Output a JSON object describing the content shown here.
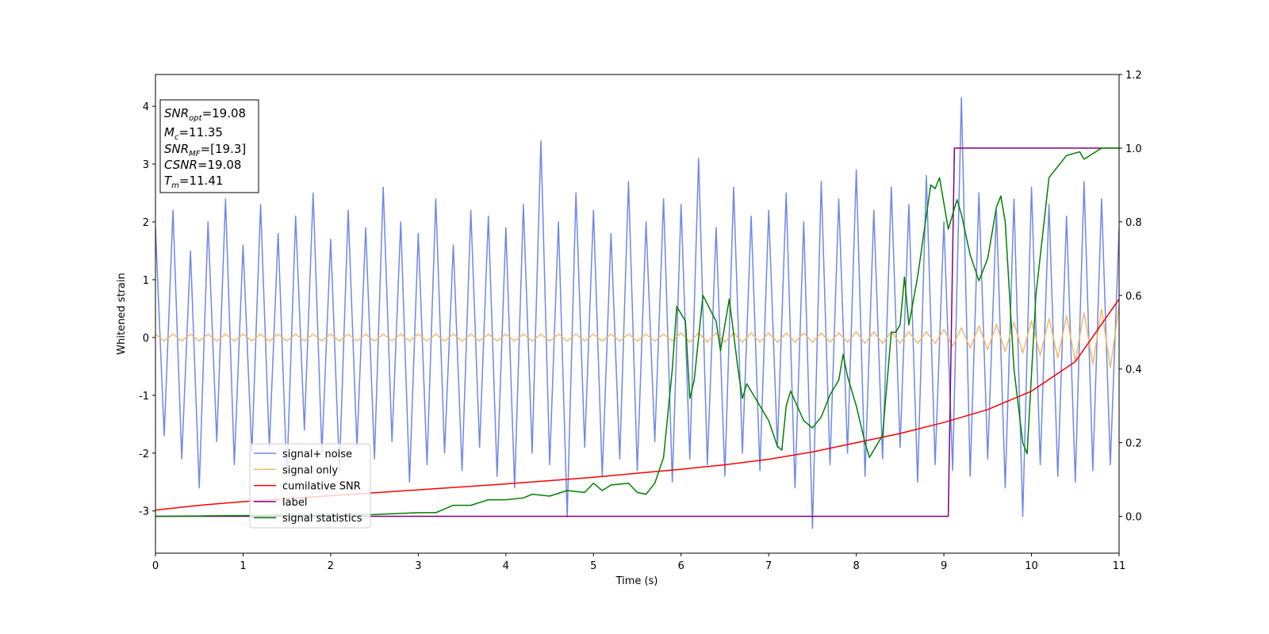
{
  "chart_data": {
    "type": "line",
    "xlabel": "Time (s)",
    "ylabel": "Whitened strain",
    "xlim": [
      0,
      11
    ],
    "ylim": [
      -3.73,
      4.55
    ],
    "y2lim": [
      -0.1,
      1.2
    ],
    "xticks": [
      0,
      1,
      2,
      3,
      4,
      5,
      6,
      7,
      8,
      9,
      10,
      11
    ],
    "yticks": [
      -3,
      -2,
      -1,
      0,
      1,
      2,
      3,
      4
    ],
    "y2ticks": [
      {
        "value": 0,
        "label": "0.0"
      },
      0.2,
      0.4,
      0.6,
      0.8,
      {
        "value": 1,
        "label": "1.0"
      },
      1.2
    ],
    "textbox": [
      {
        "symbol": "SNR",
        "subscript": "opt",
        "text": "=19.08"
      },
      {
        "symbol": "M",
        "subscript": "c",
        "text": "=11.35"
      },
      {
        "symbol": "SNR",
        "subscript": "MF",
        "text": "=[19.3]"
      },
      {
        "symbol": "CSNR",
        "text": "=19.08"
      },
      {
        "symbol": "T",
        "subscript": "m",
        "text": "=11.41"
      }
    ],
    "series": [
      {
        "name": "signal+ noise",
        "color": "#6f88e6",
        "width": 1.5,
        "x": [
          0,
          0.1,
          0.2,
          0.3,
          0.4,
          0.5,
          0.6,
          0.7,
          0.8,
          0.9,
          1,
          1.1,
          1.2,
          1.3,
          1.4,
          1.5,
          1.6,
          1.7,
          1.8,
          1.9,
          2,
          2.1,
          2.2,
          2.3,
          2.4,
          2.5,
          2.6,
          2.7,
          2.8,
          2.9,
          3,
          3.1,
          3.2,
          3.3,
          3.4,
          3.5,
          3.6,
          3.7,
          3.8,
          3.9,
          4,
          4.1,
          4.2,
          4.3,
          4.4,
          4.5,
          4.6,
          4.7,
          4.8,
          4.9,
          5,
          5.1,
          5.2,
          5.3,
          5.4,
          5.5,
          5.6,
          5.7,
          5.8,
          5.9,
          6,
          6.1,
          6.2,
          6.3,
          6.4,
          6.5,
          6.6,
          6.7,
          6.8,
          6.9,
          7,
          7.1,
          7.2,
          7.3,
          7.4,
          7.5,
          7.6,
          7.7,
          7.8,
          7.9,
          8,
          8.1,
          8.2,
          8.3,
          8.4,
          8.5,
          8.6,
          8.7,
          8.8,
          8.9,
          9,
          9.1,
          9.2,
          9.3,
          9.4,
          9.5,
          9.6,
          9.7,
          9.8,
          9.9,
          10,
          10.1,
          10.2,
          10.3,
          10.4,
          10.5,
          10.6,
          10.7,
          10.8,
          10.9,
          11
        ],
        "values": [
          1.9,
          -1.7,
          2.2,
          -2.1,
          1.5,
          -2.6,
          2.0,
          -1.8,
          2.4,
          -2.2,
          1.6,
          -2.0,
          2.3,
          -1.9,
          1.8,
          -2.4,
          2.1,
          -1.6,
          2.5,
          -2.0,
          1.7,
          -2.3,
          2.2,
          -1.9,
          1.9,
          -2.1,
          2.6,
          -1.8,
          2.0,
          -2.5,
          1.8,
          -2.2,
          2.4,
          -2.0,
          1.6,
          -2.3,
          2.2,
          -1.9,
          2.1,
          -2.4,
          1.9,
          -2.6,
          2.3,
          -2.0,
          3.4,
          -2.2,
          2.0,
          -3.1,
          2.5,
          -1.9,
          2.2,
          -2.4,
          1.8,
          -2.1,
          2.7,
          -2.3,
          2.0,
          -1.8,
          2.4,
          -2.5,
          2.3,
          -2.1,
          3.1,
          -2.2,
          1.9,
          -2.4,
          2.6,
          -2.0,
          2.1,
          -2.3,
          2.2,
          -1.9,
          2.5,
          -2.6,
          2.0,
          -3.3,
          2.7,
          -2.2,
          2.4,
          -2.0,
          2.9,
          -2.4,
          2.2,
          -2.1,
          2.6,
          -1.9,
          2.3,
          -2.5,
          2.8,
          -2.2,
          2.0,
          -2.3,
          4.15,
          -2.4,
          2.5,
          -2.1,
          2.2,
          -2.6,
          2.4,
          -3.1,
          2.6,
          -2.2,
          2.3,
          -2.4,
          2.1,
          -2.5,
          2.7,
          -2.3,
          2.4,
          -2.2,
          1.9
        ]
      },
      {
        "name": "signal only",
        "color": "#f3b869",
        "width": 1.5,
        "x": [
          0,
          0.1,
          0.2,
          0.3,
          0.4,
          0.5,
          0.6,
          0.7,
          0.8,
          0.9,
          1,
          1.1,
          1.2,
          1.3,
          1.4,
          1.5,
          1.6,
          1.7,
          1.8,
          1.9,
          2,
          2.1,
          2.2,
          2.3,
          2.4,
          2.5,
          2.6,
          2.7,
          2.8,
          2.9,
          3,
          3.1,
          3.2,
          3.3,
          3.4,
          3.5,
          3.6,
          3.7,
          3.8,
          3.9,
          4,
          4.1,
          4.2,
          4.3,
          4.4,
          4.5,
          4.6,
          4.7,
          4.8,
          4.9,
          5,
          5.1,
          5.2,
          5.3,
          5.4,
          5.5,
          5.6,
          5.7,
          5.8,
          5.9,
          6,
          6.1,
          6.2,
          6.3,
          6.4,
          6.5,
          6.6,
          6.7,
          6.8,
          6.9,
          7,
          7.1,
          7.2,
          7.3,
          7.4,
          7.5,
          7.6,
          7.7,
          7.8,
          7.9,
          8,
          8.1,
          8.2,
          8.3,
          8.4,
          8.5,
          8.6,
          8.7,
          8.8,
          8.9,
          9,
          9.1,
          9.2,
          9.3,
          9.4,
          9.5,
          9.6,
          9.7,
          9.8,
          9.9,
          10,
          10.1,
          10.2,
          10.3,
          10.4,
          10.5,
          10.6,
          10.7,
          10.8,
          10.9,
          11
        ],
        "values": [
          0.06,
          -0.06,
          0.06,
          -0.06,
          0.06,
          -0.06,
          0.06,
          -0.06,
          0.06,
          -0.06,
          0.06,
          -0.06,
          0.06,
          -0.06,
          0.06,
          -0.06,
          0.06,
          -0.06,
          0.06,
          -0.06,
          0.06,
          -0.06,
          0.06,
          -0.06,
          0.06,
          -0.06,
          0.06,
          -0.06,
          0.06,
          -0.06,
          0.06,
          -0.06,
          0.06,
          -0.06,
          0.06,
          -0.06,
          0.06,
          -0.06,
          0.06,
          -0.06,
          0.06,
          -0.06,
          0.06,
          -0.06,
          0.06,
          -0.06,
          0.06,
          -0.06,
          0.06,
          -0.06,
          0.06,
          -0.06,
          0.06,
          -0.06,
          0.06,
          -0.06,
          0.06,
          -0.06,
          0.06,
          -0.06,
          0.08,
          -0.08,
          0.08,
          -0.08,
          0.08,
          -0.08,
          0.08,
          -0.08,
          0.08,
          -0.08,
          0.08,
          -0.08,
          0.08,
          -0.08,
          0.08,
          -0.08,
          0.08,
          -0.08,
          0.08,
          -0.08,
          0.1,
          -0.1,
          0.1,
          -0.1,
          0.1,
          -0.1,
          0.1,
          -0.1,
          0.1,
          -0.1,
          0.14,
          -0.15,
          0.17,
          -0.18,
          0.2,
          -0.21,
          0.23,
          -0.24,
          0.26,
          -0.27,
          0.29,
          -0.31,
          0.33,
          -0.35,
          0.37,
          -0.4,
          0.43,
          -0.46,
          0.49,
          -0.52,
          0.55
        ]
      },
      {
        "name": "cumilative SNR",
        "color": "#ff0000",
        "width": 1.5,
        "axis": "y2",
        "x": [
          0,
          0.5,
          1,
          1.5,
          2,
          2.5,
          3,
          3.5,
          4,
          4.5,
          5,
          5.5,
          6,
          6.5,
          7,
          7.5,
          8,
          8.5,
          9,
          9.5,
          10,
          10.5,
          11
        ],
        "values": [
          0.017,
          0.03,
          0.04,
          0.048,
          0.056,
          0.064,
          0.072,
          0.08,
          0.088,
          0.097,
          0.106,
          0.117,
          0.128,
          0.14,
          0.155,
          0.175,
          0.2,
          0.225,
          0.255,
          0.29,
          0.34,
          0.42,
          0.59
        ]
      },
      {
        "name": "label",
        "color": "#800080",
        "width": 1.5,
        "axis": "y2",
        "x": [
          0,
          9.05,
          9.12,
          11
        ],
        "values": [
          0,
          0,
          1,
          1
        ]
      },
      {
        "name": "signal statistics",
        "color": "#008000",
        "width": 1.5,
        "axis": "y2",
        "x": [
          0,
          2.5,
          3,
          3.2,
          3.4,
          3.6,
          3.8,
          4,
          4.2,
          4.3,
          4.5,
          4.7,
          4.9,
          5,
          5.1,
          5.2,
          5.4,
          5.5,
          5.6,
          5.7,
          5.8,
          5.9,
          5.95,
          6.05,
          6.1,
          6.15,
          6.25,
          6.4,
          6.45,
          6.55,
          6.65,
          6.7,
          6.75,
          6.9,
          7,
          7.1,
          7.15,
          7.2,
          7.25,
          7.4,
          7.5,
          7.6,
          7.7,
          7.8,
          7.85,
          7.9,
          8,
          8.1,
          8.15,
          8.3,
          8.4,
          8.45,
          8.5,
          8.55,
          8.6,
          8.7,
          8.85,
          8.9,
          8.95,
          9.05,
          9.15,
          9.2,
          9.3,
          9.4,
          9.5,
          9.6,
          9.65,
          9.7,
          9.8,
          9.9,
          9.95,
          10.05,
          10.2,
          10.4,
          10.55,
          10.6,
          10.8,
          11
        ],
        "values": [
          0,
          0.005,
          0.01,
          0.01,
          0.03,
          0.03,
          0.045,
          0.045,
          0.05,
          0.06,
          0.055,
          0.07,
          0.065,
          0.09,
          0.07,
          0.085,
          0.09,
          0.065,
          0.06,
          0.09,
          0.16,
          0.4,
          0.57,
          0.53,
          0.32,
          0.37,
          0.6,
          0.53,
          0.45,
          0.59,
          0.4,
          0.32,
          0.36,
          0.3,
          0.26,
          0.19,
          0.18,
          0.3,
          0.34,
          0.26,
          0.24,
          0.27,
          0.33,
          0.37,
          0.44,
          0.38,
          0.3,
          0.2,
          0.16,
          0.22,
          0.5,
          0.5,
          0.52,
          0.65,
          0.52,
          0.65,
          0.9,
          0.89,
          0.92,
          0.78,
          0.86,
          0.82,
          0.71,
          0.64,
          0.7,
          0.84,
          0.87,
          0.8,
          0.4,
          0.2,
          0.17,
          0.6,
          0.92,
          0.98,
          0.99,
          0.97,
          1,
          1
        ]
      }
    ]
  }
}
